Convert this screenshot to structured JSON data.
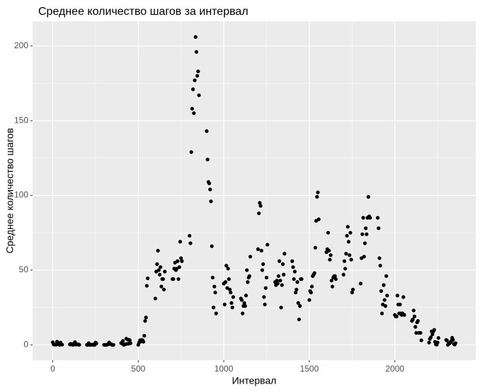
{
  "chart_data": {
    "type": "scatter",
    "title": "Среднее количество шагов за интервал",
    "x_label": "Интервал",
    "y_label": "Среднее количество шагов",
    "color": "#000000",
    "grid": true,
    "xlim": [
      -118,
      2473
    ],
    "ylim": [
      -10.3,
      216.5
    ],
    "xticks": [
      0,
      500,
      1000,
      1500,
      2000
    ],
    "yticks": [
      0,
      50,
      100,
      150,
      200
    ],
    "x": [
      0,
      5,
      10,
      15,
      20,
      25,
      30,
      35,
      40,
      45,
      50,
      55,
      100,
      105,
      110,
      115,
      120,
      125,
      130,
      135,
      140,
      145,
      150,
      155,
      200,
      205,
      210,
      215,
      220,
      225,
      230,
      235,
      240,
      245,
      250,
      255,
      300,
      305,
      310,
      315,
      320,
      325,
      330,
      335,
      340,
      345,
      350,
      355,
      400,
      405,
      410,
      415,
      420,
      425,
      430,
      435,
      440,
      445,
      450,
      455,
      500,
      505,
      510,
      515,
      520,
      525,
      530,
      535,
      540,
      545,
      550,
      555,
      600,
      605,
      610,
      615,
      620,
      625,
      630,
      635,
      640,
      645,
      650,
      655,
      700,
      705,
      710,
      715,
      720,
      725,
      730,
      735,
      740,
      745,
      750,
      755,
      800,
      805,
      810,
      815,
      820,
      825,
      830,
      835,
      840,
      845,
      850,
      855,
      900,
      905,
      910,
      915,
      920,
      925,
      930,
      935,
      940,
      945,
      950,
      955,
      1000,
      1005,
      1010,
      1015,
      1020,
      1025,
      1030,
      1035,
      1040,
      1045,
      1050,
      1055,
      1100,
      1105,
      1110,
      1115,
      1120,
      1125,
      1130,
      1135,
      1140,
      1145,
      1150,
      1155,
      1200,
      1205,
      1210,
      1215,
      1220,
      1225,
      1230,
      1235,
      1240,
      1245,
      1250,
      1255,
      1300,
      1305,
      1310,
      1315,
      1320,
      1325,
      1330,
      1335,
      1340,
      1345,
      1350,
      1355,
      1400,
      1405,
      1410,
      1415,
      1420,
      1425,
      1430,
      1435,
      1440,
      1445,
      1450,
      1455,
      1500,
      1505,
      1510,
      1515,
      1520,
      1525,
      1530,
      1535,
      1540,
      1545,
      1550,
      1555,
      1600,
      1605,
      1610,
      1615,
      1620,
      1625,
      1630,
      1635,
      1640,
      1645,
      1650,
      1655,
      1700,
      1705,
      1710,
      1715,
      1720,
      1725,
      1730,
      1735,
      1740,
      1745,
      1750,
      1755,
      1800,
      1805,
      1810,
      1815,
      1820,
      1825,
      1830,
      1835,
      1840,
      1845,
      1850,
      1855,
      1900,
      1905,
      1910,
      1915,
      1920,
      1925,
      1930,
      1935,
      1940,
      1945,
      1950,
      1955,
      2000,
      2005,
      2010,
      2015,
      2020,
      2025,
      2030,
      2035,
      2040,
      2045,
      2050,
      2055,
      2100,
      2105,
      2110,
      2115,
      2120,
      2125,
      2130,
      2135,
      2140,
      2145,
      2150,
      2155,
      2200,
      2205,
      2210,
      2215,
      2220,
      2225,
      2230,
      2235,
      2240,
      2245,
      2250,
      2255,
      2300,
      2305,
      2310,
      2315,
      2320,
      2325,
      2330,
      2335,
      2340,
      2345,
      2350,
      2355
    ],
    "values": [
      1.7,
      0.3,
      0.1,
      0.2,
      0.1,
      2.1,
      0.5,
      0.9,
      0,
      1.5,
      0.3,
      0.1,
      0.3,
      0.7,
      0.2,
      0.3,
      0,
      1.1,
      1.8,
      0.2,
      0.2,
      0.4,
      0.3,
      0,
      0,
      0,
      1.1,
      0,
      0,
      0.1,
      0,
      0.2,
      0,
      0,
      1.5,
      0.9,
      0,
      0,
      0,
      0,
      0.2,
      0.6,
      1.6,
      0.6,
      0.5,
      0.1,
      0,
      0,
      1.2,
      0.9,
      2.6,
      0,
      0.3,
      0.4,
      4.1,
      0.7,
      3.5,
      0.8,
      3.1,
      1.1,
      0,
      1.6,
      3,
      2.2,
      3.3,
      3,
      2.1,
      6.1,
      16,
      18.3,
      39.5,
      44.5,
      31,
      49,
      54,
      63,
      50,
      47,
      52,
      39,
      44,
      44,
      37,
      49,
      44,
      44,
      51,
      55,
      50,
      51,
      56,
      44,
      52,
      69,
      58,
      56,
      73,
      68,
      129,
      158,
      171,
      155,
      177,
      206,
      196,
      180,
      183,
      167,
      143,
      124,
      109,
      108,
      104,
      96,
      66,
      45,
      25,
      39,
      35,
      21,
      41,
      27,
      42,
      53,
      38,
      51,
      44,
      37,
      35,
      28,
      25,
      32,
      31,
      30,
      21,
      26,
      28,
      26,
      33,
      50,
      42,
      45,
      46,
      59,
      64,
      88,
      95,
      93,
      63,
      50,
      54,
      32,
      27,
      38,
      45,
      67,
      42,
      40,
      43,
      41,
      46,
      56,
      43,
      25,
      40,
      54,
      47,
      61,
      56,
      52,
      44,
      49,
      35,
      37,
      42,
      28,
      17,
      26,
      44,
      44,
      30,
      36,
      35,
      39,
      46,
      47,
      48,
      65,
      83,
      99,
      102,
      84,
      62,
      64,
      75,
      63,
      57,
      60,
      43,
      39,
      45,
      46,
      46,
      44,
      47,
      56,
      51,
      61,
      73,
      79,
      69,
      60,
      75,
      57,
      35,
      37,
      41,
      58,
      74,
      85,
      59,
      68,
      78,
      74,
      85,
      99,
      86,
      85,
      85,
      78,
      58,
      53,
      36,
      21,
      27,
      40,
      30,
      26,
      46,
      33,
      20,
      19,
      19,
      33,
      27,
      21,
      27,
      21,
      20,
      21,
      32,
      20,
      16,
      17,
      23,
      19,
      12,
      8,
      15,
      16,
      8,
      8,
      8,
      3,
      1.5,
      4,
      5,
      9,
      7,
      9,
      10,
      2,
      0.3,
      0.1,
      1.6,
      4.6,
      3.3,
      2.8,
      0,
      0.8,
      1,
      1.6,
      2.6,
      4.7,
      3.3,
      0.6,
      0.2,
      1.1
    ]
  }
}
